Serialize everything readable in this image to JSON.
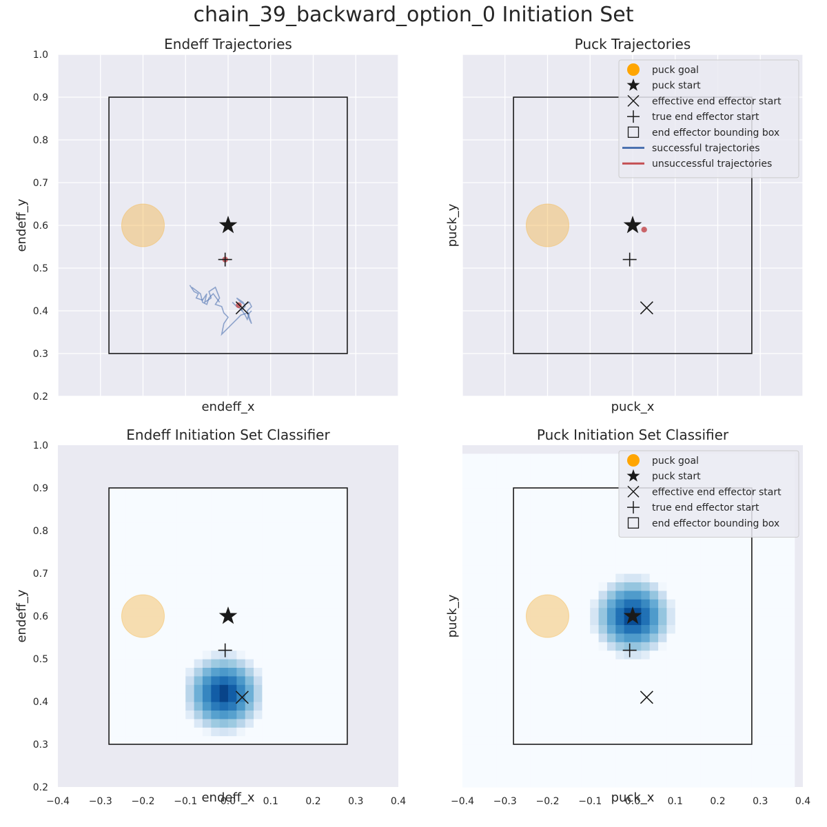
{
  "suptitle": "chain_39_backward_option_0 Initiation Set",
  "axis_ticks": {
    "x": [
      "−0.4",
      "−0.3",
      "−0.2",
      "−0.1",
      "0.0",
      "0.1",
      "0.2",
      "0.3",
      "0.4"
    ],
    "y": [
      "0.2",
      "0.3",
      "0.4",
      "0.5",
      "0.6",
      "0.7",
      "0.8",
      "0.9",
      "1.0"
    ]
  },
  "chart_data": [
    {
      "type": "scatter",
      "title": "Endeff Trajectories",
      "xlabel": "endeff_x",
      "ylabel": "endeff_y",
      "xlim": [
        -0.4,
        0.4
      ],
      "ylim": [
        0.2,
        1.0
      ],
      "grid": true,
      "x_ticklabels_shown": false,
      "y_ticklabels_shown": true,
      "markers": {
        "puck_goal": {
          "x": -0.2,
          "y": 0.6,
          "color": "#f5b950"
        },
        "puck_start": {
          "x": 0.0,
          "y": 0.6
        },
        "effective_end_effector_start": {
          "x": 0.033,
          "y": 0.407
        },
        "true_end_effector_start": {
          "x": -0.007,
          "y": 0.52
        }
      },
      "bounding_box": {
        "x": [
          -0.28,
          0.28
        ],
        "y": [
          0.3,
          0.9
        ]
      },
      "successful_trajectories": [
        {
          "color": "#4c72b0",
          "points": [
            [
              -0.09,
              0.46
            ],
            [
              -0.08,
              0.445
            ],
            [
              -0.07,
              0.44
            ],
            [
              -0.075,
              0.43
            ],
            [
              -0.06,
              0.425
            ],
            [
              -0.05,
              0.44
            ],
            [
              -0.055,
              0.42
            ],
            [
              -0.04,
              0.43
            ],
            [
              -0.045,
              0.445
            ],
            [
              -0.03,
              0.455
            ],
            [
              -0.02,
              0.43
            ],
            [
              -0.03,
              0.415
            ],
            [
              -0.015,
              0.41
            ],
            [
              -0.01,
              0.395
            ],
            [
              0.0,
              0.385
            ],
            [
              -0.01,
              0.37
            ],
            [
              -0.015,
              0.345
            ],
            [
              0.0,
              0.36
            ],
            [
              0.01,
              0.37
            ],
            [
              0.02,
              0.38
            ],
            [
              0.03,
              0.39
            ],
            [
              0.045,
              0.395
            ],
            [
              0.05,
              0.38
            ],
            [
              0.055,
              0.37
            ],
            [
              0.05,
              0.385
            ],
            [
              0.045,
              0.4
            ],
            [
              0.055,
              0.41
            ],
            [
              0.05,
              0.42
            ],
            [
              0.04,
              0.415
            ],
            [
              0.03,
              0.42
            ],
            [
              0.02,
              0.43
            ],
            [
              0.035,
              0.42
            ],
            [
              0.04,
              0.41
            ],
            [
              0.03,
              0.4
            ]
          ]
        },
        {
          "color": "#4c72b0",
          "points": [
            [
              -0.085,
              0.455
            ],
            [
              -0.065,
              0.44
            ],
            [
              -0.06,
              0.42
            ],
            [
              -0.05,
              0.415
            ],
            [
              -0.045,
              0.43
            ],
            [
              -0.035,
              0.44
            ],
            [
              -0.02,
              0.42
            ]
          ]
        },
        {
          "color": "#4c72b0",
          "points": [
            [
              0.01,
              0.42
            ],
            [
              0.02,
              0.41
            ],
            [
              0.03,
              0.405
            ],
            [
              0.04,
              0.39
            ],
            [
              0.045,
              0.38
            ],
            [
              0.05,
              0.395
            ],
            [
              0.055,
              0.4
            ]
          ]
        }
      ],
      "unsuccessful_trajectories": [
        {
          "color": "#c44e52",
          "points": [
            [
              -0.007,
              0.52
            ],
            [
              -0.005,
              0.519
            ]
          ]
        },
        {
          "color": "#c44e52",
          "points": [
            [
              0.025,
              0.413
            ],
            [
              0.026,
              0.414
            ]
          ]
        }
      ]
    },
    {
      "type": "scatter",
      "title": "Puck Trajectories",
      "xlabel": "puck_x",
      "ylabel": "puck_y",
      "xlim": [
        -0.4,
        0.4
      ],
      "ylim": [
        0.2,
        1.0
      ],
      "grid": true,
      "x_ticklabels_shown": false,
      "y_ticklabels_shown": false,
      "legend_position": "top-right",
      "legend": [
        "puck goal",
        "puck start",
        "effective end effector start",
        "true end effector start",
        "end effector bounding box",
        "successful trajectories",
        "unsuccessful trajectories"
      ],
      "markers": {
        "puck_goal": {
          "x": -0.2,
          "y": 0.6,
          "color": "#f5b950"
        },
        "puck_start": {
          "x": 0.0,
          "y": 0.6
        },
        "effective_end_effector_start": {
          "x": 0.033,
          "y": 0.407
        },
        "true_end_effector_start": {
          "x": -0.007,
          "y": 0.52
        }
      },
      "bounding_box": {
        "x": [
          -0.28,
          0.28
        ],
        "y": [
          0.3,
          0.9
        ]
      },
      "successful_trajectories": [],
      "unsuccessful_trajectories": [
        {
          "color": "#c44e52",
          "points": [
            [
              0.027,
              0.59
            ],
            [
              0.028,
              0.591
            ]
          ]
        }
      ]
    },
    {
      "type": "heatmap",
      "title": "Endeff Initiation Set Classifier",
      "xlabel": "endeff_x",
      "ylabel": "endeff_y",
      "xlim": [
        -0.4,
        0.4
      ],
      "ylim": [
        0.2,
        1.0
      ],
      "x_ticklabels_shown": true,
      "y_ticklabels_shown": true,
      "colormap": "Blues",
      "heatmap": {
        "x_range": [
          -0.28,
          0.28
        ],
        "y_range": [
          0.3,
          0.9
        ],
        "cell": 0.02,
        "blob_center": [
          -0.01,
          0.42
        ],
        "blob_radius": 0.1
      },
      "markers": {
        "puck_goal": {
          "x": -0.2,
          "y": 0.6,
          "color": "#f5b950"
        },
        "puck_start": {
          "x": 0.0,
          "y": 0.6
        },
        "effective_end_effector_start": {
          "x": 0.033,
          "y": 0.41
        },
        "true_end_effector_start": {
          "x": -0.007,
          "y": 0.52
        }
      },
      "bounding_box": {
        "x": [
          -0.28,
          0.28
        ],
        "y": [
          0.3,
          0.9
        ]
      }
    },
    {
      "type": "heatmap",
      "title": "Puck Initiation Set Classifier",
      "xlabel": "puck_x",
      "ylabel": "puck_y",
      "xlim": [
        -0.4,
        0.4
      ],
      "ylim": [
        0.2,
        1.0
      ],
      "x_ticklabels_shown": true,
      "y_ticklabels_shown": false,
      "legend_position": "top-right",
      "legend": [
        "puck goal",
        "puck start",
        "effective end effector start",
        "true end effector start",
        "end effector bounding box"
      ],
      "colormap": "Blues",
      "heatmap": {
        "x_range": [
          -0.4,
          0.38
        ],
        "y_range": [
          0.2,
          0.98
        ],
        "cell": 0.02,
        "blob_center": [
          0.0,
          0.6
        ],
        "blob_radius": 0.1
      },
      "markers": {
        "puck_goal": {
          "x": -0.2,
          "y": 0.6,
          "color": "#f5b950"
        },
        "puck_start": {
          "x": 0.0,
          "y": 0.6
        },
        "effective_end_effector_start": {
          "x": 0.033,
          "y": 0.41
        },
        "true_end_effector_start": {
          "x": -0.007,
          "y": 0.52
        }
      },
      "bounding_box": {
        "x": [
          -0.28,
          0.28
        ],
        "y": [
          0.3,
          0.9
        ]
      }
    }
  ]
}
